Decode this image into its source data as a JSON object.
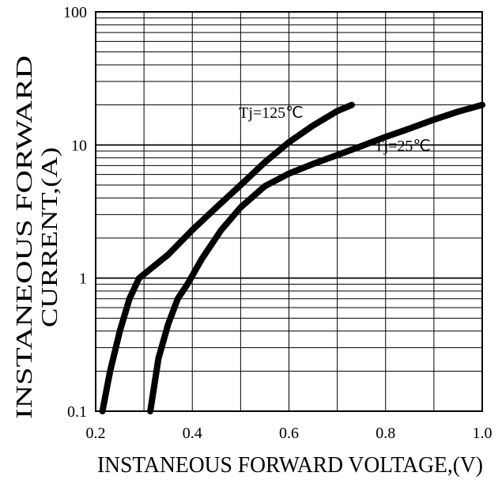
{
  "chart_data": {
    "type": "line",
    "xlabel": "INSTANEOUS FORWARD VOLTAGE,(V)",
    "ylabel_lines": [
      "INSTANEOUS FORWARD",
      "CURRENT,(A)"
    ],
    "xlim": [
      0.2,
      1.0
    ],
    "ylim": [
      0.1,
      100
    ],
    "yscale": "log",
    "grid": true,
    "x_ticks": [
      "0.2",
      "0.4",
      "0.6",
      "0.8",
      "1.0"
    ],
    "y_ticks": [
      "0.1",
      "1",
      "10",
      "100"
    ],
    "series": [
      {
        "name": "Tj=125℃",
        "x": [
          0.214,
          0.23,
          0.25,
          0.27,
          0.29,
          0.35,
          0.4,
          0.45,
          0.5,
          0.55,
          0.6,
          0.65,
          0.7,
          0.73
        ],
        "y": [
          0.1,
          0.2,
          0.4,
          0.7,
          1.0,
          1.5,
          2.3,
          3.4,
          5.0,
          7.4,
          10.5,
          14.0,
          18.0,
          20.0
        ]
      },
      {
        "name": "Tj=25℃",
        "x": [
          0.313,
          0.33,
          0.35,
          0.37,
          0.39,
          0.42,
          0.46,
          0.5,
          0.55,
          0.6,
          0.65,
          0.7,
          0.75,
          0.8,
          0.85,
          0.9,
          0.95,
          1.0
        ],
        "y": [
          0.1,
          0.25,
          0.45,
          0.7,
          0.9,
          1.4,
          2.3,
          3.4,
          4.9,
          6.1,
          7.2,
          8.4,
          9.8,
          11.5,
          13.3,
          15.5,
          17.8,
          20.0
        ]
      }
    ],
    "annotations": [
      {
        "text": "Tj=125℃",
        "x": 0.563,
        "y": 16.0
      },
      {
        "text": "Tj=25℃",
        "x": 0.835,
        "y": 9.0
      }
    ]
  }
}
